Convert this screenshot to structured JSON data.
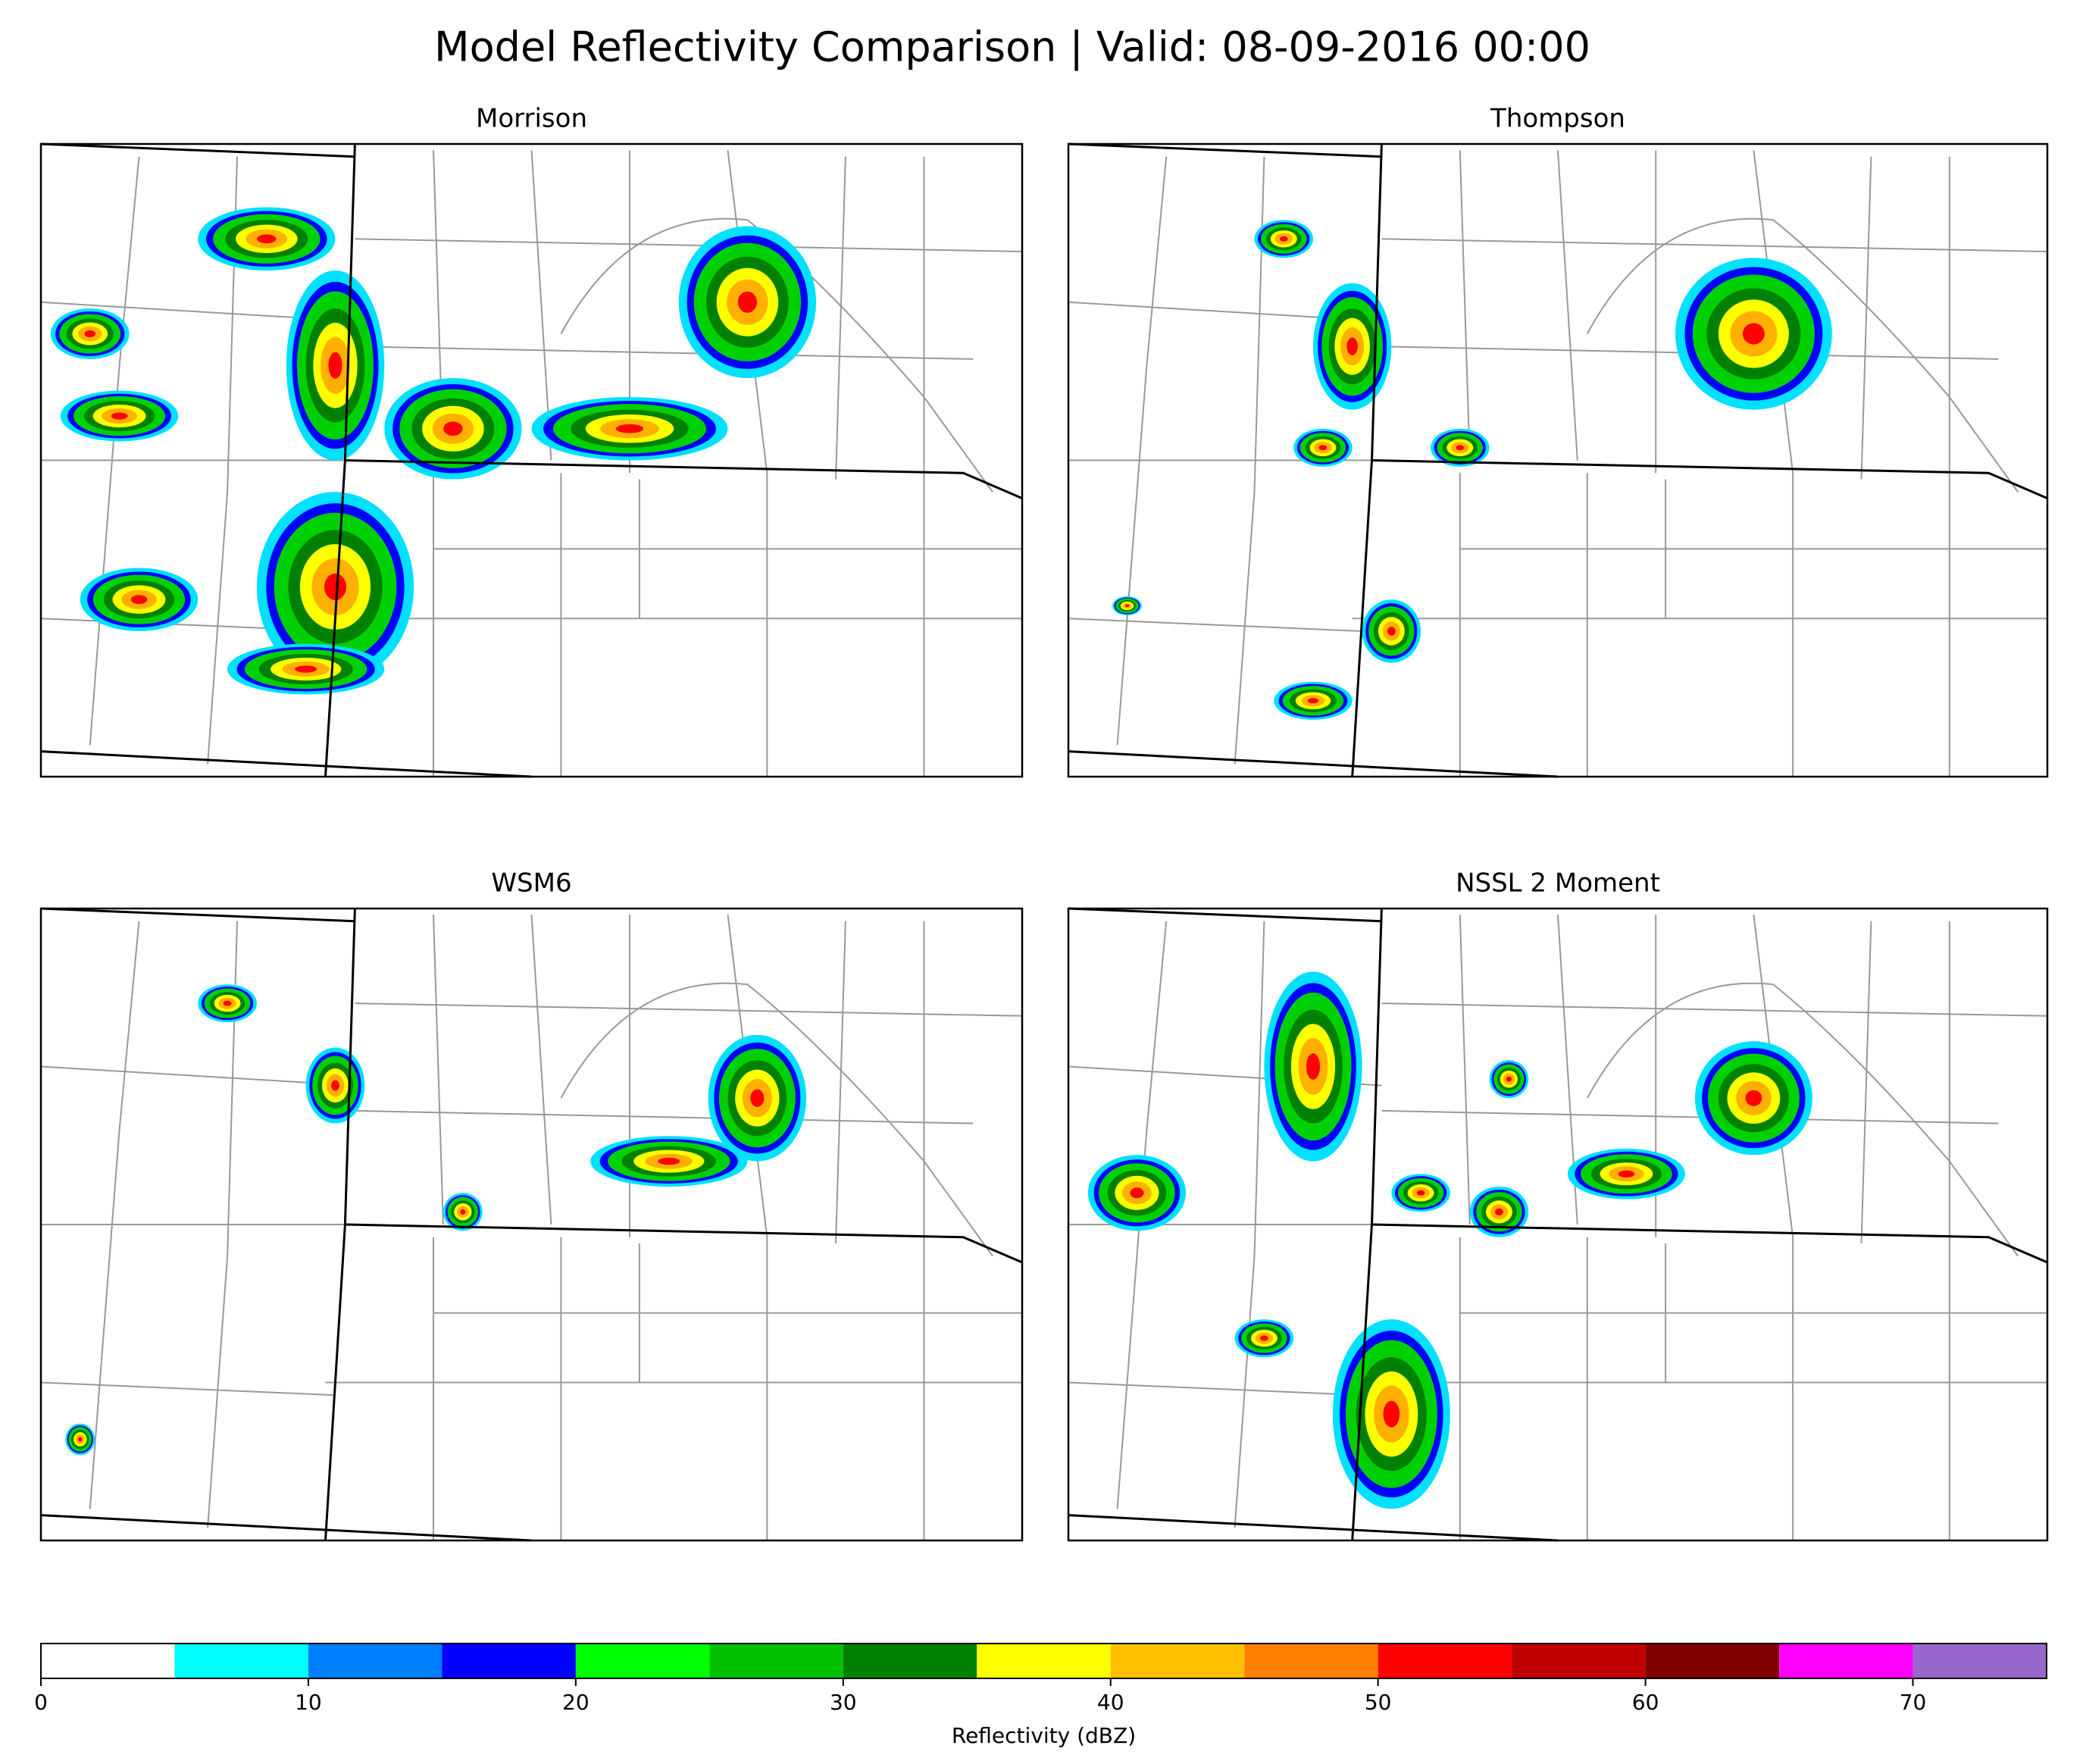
{
  "title": "Model Reflectivity Comparison | Valid: 08-09-2016 00:00",
  "panels": [
    {
      "title": "Morrison"
    },
    {
      "title": "Thompson"
    },
    {
      "title": "WSM6"
    },
    {
      "title": "NSSL 2 Moment"
    }
  ],
  "colorbar": {
    "label": "Reflectivity (dBZ)",
    "bounds": [
      0,
      5,
      10,
      15,
      20,
      25,
      30,
      35,
      40,
      45,
      50,
      55,
      60,
      65,
      70,
      75
    ],
    "colors": [
      "#ffffff",
      "#00ffff",
      "#0080ff",
      "#0000ff",
      "#00ff00",
      "#00c000",
      "#008000",
      "#ffff00",
      "#ffc000",
      "#ff8000",
      "#ff0000",
      "#c00000",
      "#800000",
      "#ff00ff",
      "#9966cc"
    ],
    "xlim": [
      0,
      75
    ],
    "xticks": [
      0,
      10,
      20,
      30,
      40,
      50,
      60,
      70
    ]
  }
}
